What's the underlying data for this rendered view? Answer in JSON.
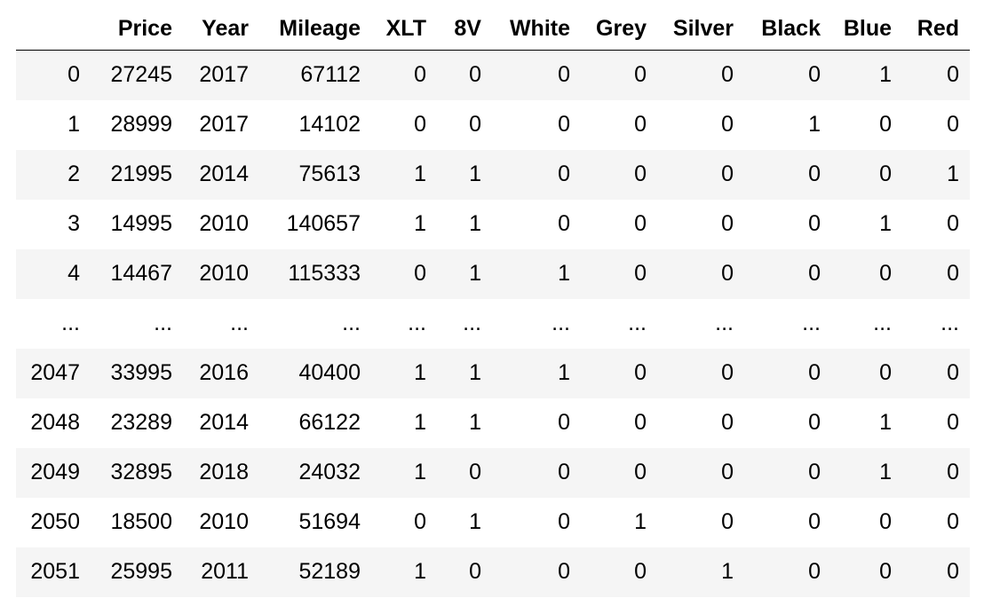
{
  "table": {
    "columns": [
      "",
      "Price",
      "Year",
      "Mileage",
      "XLT",
      "8V",
      "White",
      "Grey",
      "Silver",
      "Black",
      "Blue",
      "Red"
    ],
    "rows": [
      [
        "0",
        "27245",
        "2017",
        "67112",
        "0",
        "0",
        "0",
        "0",
        "0",
        "0",
        "1",
        "0"
      ],
      [
        "1",
        "28999",
        "2017",
        "14102",
        "0",
        "0",
        "0",
        "0",
        "0",
        "1",
        "0",
        "0"
      ],
      [
        "2",
        "21995",
        "2014",
        "75613",
        "1",
        "1",
        "0",
        "0",
        "0",
        "0",
        "0",
        "1"
      ],
      [
        "3",
        "14995",
        "2010",
        "140657",
        "1",
        "1",
        "0",
        "0",
        "0",
        "0",
        "1",
        "0"
      ],
      [
        "4",
        "14467",
        "2010",
        "115333",
        "0",
        "1",
        "1",
        "0",
        "0",
        "0",
        "0",
        "0"
      ],
      [
        "...",
        "...",
        "...",
        "...",
        "...",
        "...",
        "...",
        "...",
        "...",
        "...",
        "...",
        "..."
      ],
      [
        "2047",
        "33995",
        "2016",
        "40400",
        "1",
        "1",
        "1",
        "0",
        "0",
        "0",
        "0",
        "0"
      ],
      [
        "2048",
        "23289",
        "2014",
        "66122",
        "1",
        "1",
        "0",
        "0",
        "0",
        "0",
        "1",
        "0"
      ],
      [
        "2049",
        "32895",
        "2018",
        "24032",
        "1",
        "0",
        "0",
        "0",
        "0",
        "0",
        "1",
        "0"
      ],
      [
        "2050",
        "18500",
        "2010",
        "51694",
        "0",
        "1",
        "0",
        "1",
        "0",
        "0",
        "0",
        "0"
      ],
      [
        "2051",
        "25995",
        "2011",
        "52189",
        "1",
        "0",
        "0",
        "0",
        "1",
        "0",
        "0",
        "0"
      ]
    ]
  },
  "colors": {
    "stripe": "#f5f5f5",
    "background": "#ffffff",
    "text": "#000000"
  }
}
